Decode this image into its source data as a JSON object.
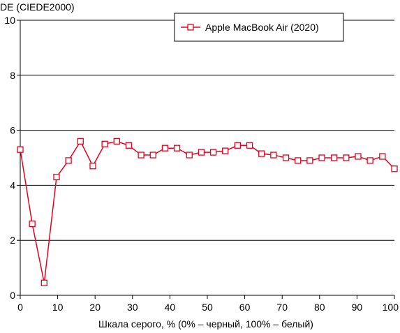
{
  "chart_data": {
    "type": "line",
    "title": "",
    "ylabel": "DE (CIEDE2000)",
    "xlabel": "Шкала серого, % (0% – черный, 100% – белый)",
    "xlim": [
      0,
      100
    ],
    "ylim": [
      0,
      10
    ],
    "x_ticks": [
      0,
      10,
      20,
      30,
      40,
      50,
      60,
      70,
      80,
      90,
      100
    ],
    "y_ticks": [
      0,
      2,
      4,
      6,
      8,
      10
    ],
    "grid": "horizontal",
    "legend_position": "top-right",
    "series": [
      {
        "name": "Apple MacBook Air (2020)",
        "color": "#e8001c",
        "marker": "square-open",
        "x": [
          0,
          3.2,
          6.4,
          9.7,
          12.9,
          16.1,
          19.4,
          22.6,
          25.8,
          29.0,
          32.3,
          35.5,
          38.7,
          41.9,
          45.2,
          48.4,
          51.6,
          54.8,
          58.1,
          61.3,
          64.5,
          67.7,
          71.0,
          74.2,
          77.4,
          80.6,
          83.9,
          87.1,
          90.3,
          93.5,
          96.8,
          100
        ],
        "y": [
          5.3,
          2.6,
          0.45,
          4.3,
          4.9,
          5.6,
          4.7,
          5.5,
          5.6,
          5.45,
          5.1,
          5.1,
          5.35,
          5.35,
          5.1,
          5.2,
          5.2,
          5.25,
          5.45,
          5.45,
          5.15,
          5.1,
          5.0,
          4.9,
          4.9,
          5.0,
          5.0,
          5.0,
          5.05,
          4.9,
          5.05,
          4.6
        ]
      }
    ]
  }
}
